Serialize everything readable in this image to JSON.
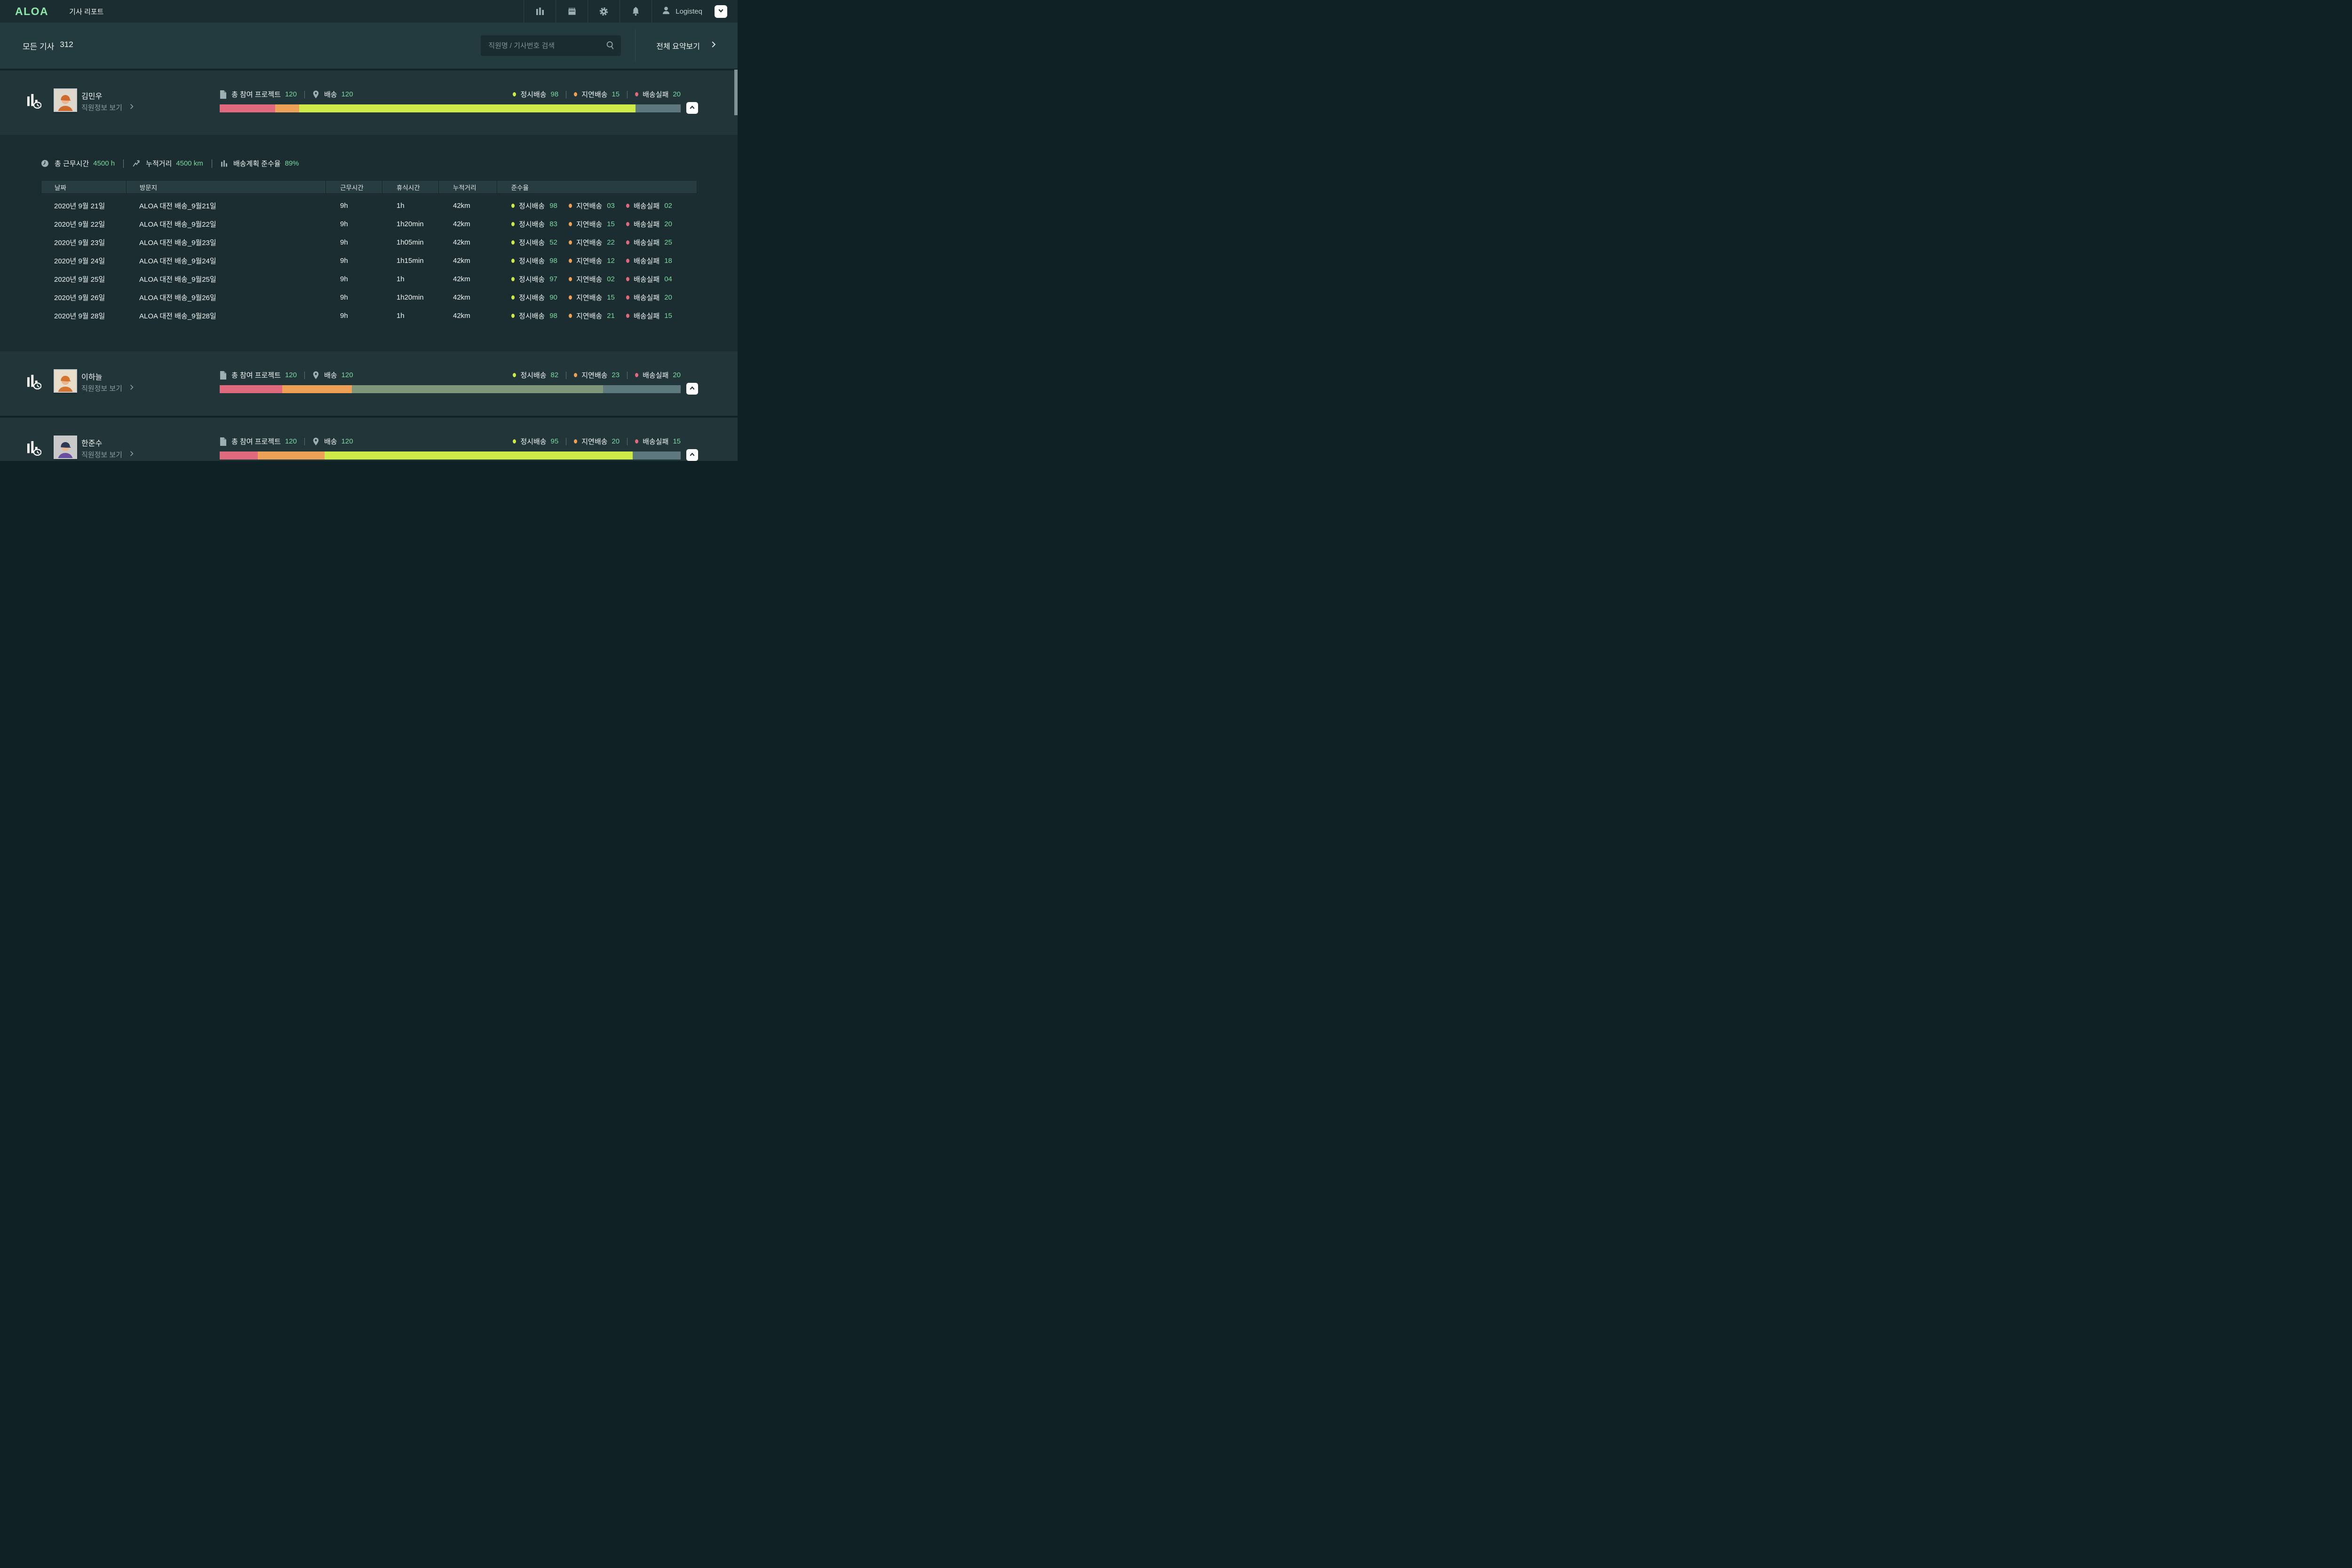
{
  "header": {
    "logo": "ALOA",
    "title": "기사 리포트",
    "user": "Logisteq"
  },
  "toolbar": {
    "all_drivers_label": "모든 기사",
    "all_drivers_count": "312",
    "search_placeholder": "직원명 / 기사번호 검색",
    "summary_link": "전체 요약보기"
  },
  "labels": {
    "view_employee_info": "직원정보 보기",
    "total_projects": "총 참여 프로젝트",
    "delivery": "배송",
    "ontime": "정시배송",
    "delayed": "지연배송",
    "failed": "배송실패"
  },
  "palette": {
    "logo_mint": "#8ee6a9",
    "value_mint": "#7cd7a0",
    "ontime_green": "#cdea48",
    "delayed_orange": "#eda156",
    "failed_pink": "#e0697e",
    "muted_green": "#7f9678",
    "bar_gray": "#5d797d",
    "card_bg": "#223539",
    "panel_bg": "#1b2d31"
  },
  "drivers": [
    {
      "name": "김민우",
      "projects": "120",
      "deliveries": "120",
      "ontime": "98",
      "delayed": "15",
      "failed": "20",
      "avatar": {
        "bg": "#ded8cc",
        "cap": "#cf6a2e",
        "shirt": "#cf6a2e",
        "skin": "#e9b68e"
      },
      "bar": [
        {
          "color": "#e0697e",
          "pct": 12.0
        },
        {
          "color": "#eda156",
          "pct": 5.2
        },
        {
          "color": "#cdea48",
          "pct": 73.0
        },
        {
          "color": "#5d797d",
          "pct": 9.8
        }
      ]
    },
    {
      "name": "이하늘",
      "projects": "120",
      "deliveries": "120",
      "ontime": "82",
      "delayed": "23",
      "failed": "20",
      "avatar": {
        "bg": "#e7ddc8",
        "cap": "#d3742f",
        "shirt": "#d3742f",
        "skin": "#e9b68e"
      },
      "bar": [
        {
          "color": "#e0697e",
          "pct": 13.6
        },
        {
          "color": "#eda156",
          "pct": 15.1
        },
        {
          "color": "#7f9678",
          "pct": 54.5
        },
        {
          "color": "#5d797d",
          "pct": 16.8
        }
      ]
    },
    {
      "name": "한준수",
      "projects": "120",
      "deliveries": "120",
      "ontime": "95",
      "delayed": "20",
      "failed": "15",
      "avatar": {
        "bg": "#c9c9c9",
        "cap": "#2d3a55",
        "shirt": "#6a4f9e",
        "skin": "#e9b68e"
      },
      "bar": [
        {
          "color": "#e0697e",
          "pct": 8.3
        },
        {
          "color": "#eda156",
          "pct": 14.5
        },
        {
          "color": "#cdea48",
          "pct": 66.8
        },
        {
          "color": "#5d797d",
          "pct": 10.4
        }
      ]
    }
  ],
  "detail": {
    "work_time_label": "총 근무시간",
    "work_time": "4500 h",
    "distance_label": "누적거리",
    "distance": "4500 km",
    "compliance_label": "배송계획 준수율",
    "compliance": "89%",
    "table": {
      "headers": [
        "날짜",
        "방문지",
        "근무시간",
        "휴식시간",
        "누적거리",
        "준수율"
      ],
      "rows": [
        {
          "date": "2020년 9월 21일",
          "visit": "ALOA 대전 배송_9월21일",
          "work": "9h",
          "rest": "1h",
          "dist": "42km",
          "ontime": "98",
          "delayed": "03",
          "failed": "02"
        },
        {
          "date": "2020년 9월 22일",
          "visit": "ALOA 대전 배송_9월22일",
          "work": "9h",
          "rest": "1h20min",
          "dist": "42km",
          "ontime": "83",
          "delayed": "15",
          "failed": "20"
        },
        {
          "date": "2020년 9월 23일",
          "visit": "ALOA 대전 배송_9월23일",
          "work": "9h",
          "rest": "1h05min",
          "dist": "42km",
          "ontime": "52",
          "delayed": "22",
          "failed": "25"
        },
        {
          "date": "2020년 9월 24일",
          "visit": "ALOA 대전 배송_9월24일",
          "work": "9h",
          "rest": "1h15min",
          "dist": "42km",
          "ontime": "98",
          "delayed": "12",
          "failed": "18"
        },
        {
          "date": "2020년 9월 25일",
          "visit": "ALOA 대전 배송_9월25일",
          "work": "9h",
          "rest": "1h",
          "dist": "42km",
          "ontime": "97",
          "delayed": "02",
          "failed": "04"
        },
        {
          "date": "2020년 9월 26일",
          "visit": "ALOA 대전 배송_9월26일",
          "work": "9h",
          "rest": "1h20min",
          "dist": "42km",
          "ontime": "90",
          "delayed": "15",
          "failed": "20"
        },
        {
          "date": "2020년 9월 28일",
          "visit": "ALOA 대전 배송_9월28일",
          "work": "9h",
          "rest": "1h",
          "dist": "42km",
          "ontime": "98",
          "delayed": "21",
          "failed": "15"
        }
      ]
    }
  }
}
